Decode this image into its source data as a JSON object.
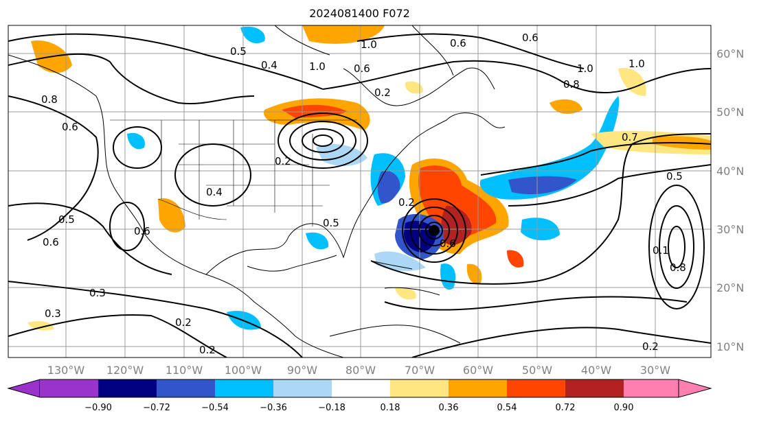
{
  "title": "2024081400 F072",
  "lon_labels": [
    "130°W",
    "120°W",
    "110°W",
    "100°W",
    "90°W",
    "80°W",
    "70°W",
    "60°W",
    "50°W",
    "40°W",
    "30°W"
  ],
  "lat_labels": [
    "60°N",
    "50°N",
    "40°N",
    "30°N",
    "20°N",
    "10°N"
  ],
  "colorbar": {
    "ticks": [
      "−0.90",
      "−0.72",
      "−0.54",
      "−0.36",
      "−0.18",
      "0.18",
      "0.36",
      "0.54",
      "0.72",
      "0.90"
    ],
    "colors": [
      "#9933cc",
      "#000080",
      "#3355cc",
      "#00bfff",
      "#add8f5",
      "#ffffff",
      "#ffe680",
      "#ffa500",
      "#ff4500",
      "#b22222",
      "#ff80b0"
    ]
  },
  "contour_labels": [
    "0.8",
    "1.0",
    "0.6",
    "0.4",
    "0.2",
    "0.6",
    "0.4",
    "0.5",
    "0.2",
    "0.6",
    "1.0",
    "0.8",
    "1.0",
    "0.7",
    "0.5",
    "0.6",
    "0.5",
    "0.6",
    "0.1",
    "0.8",
    "0.3",
    "0.2",
    "0.2",
    "0.3",
    "0.2",
    "0.5",
    "0.6",
    "0.2",
    "0.6",
    "1.0"
  ],
  "colors": {
    "land_line": "#000000",
    "grid": "#999999",
    "contour": "#000000"
  }
}
